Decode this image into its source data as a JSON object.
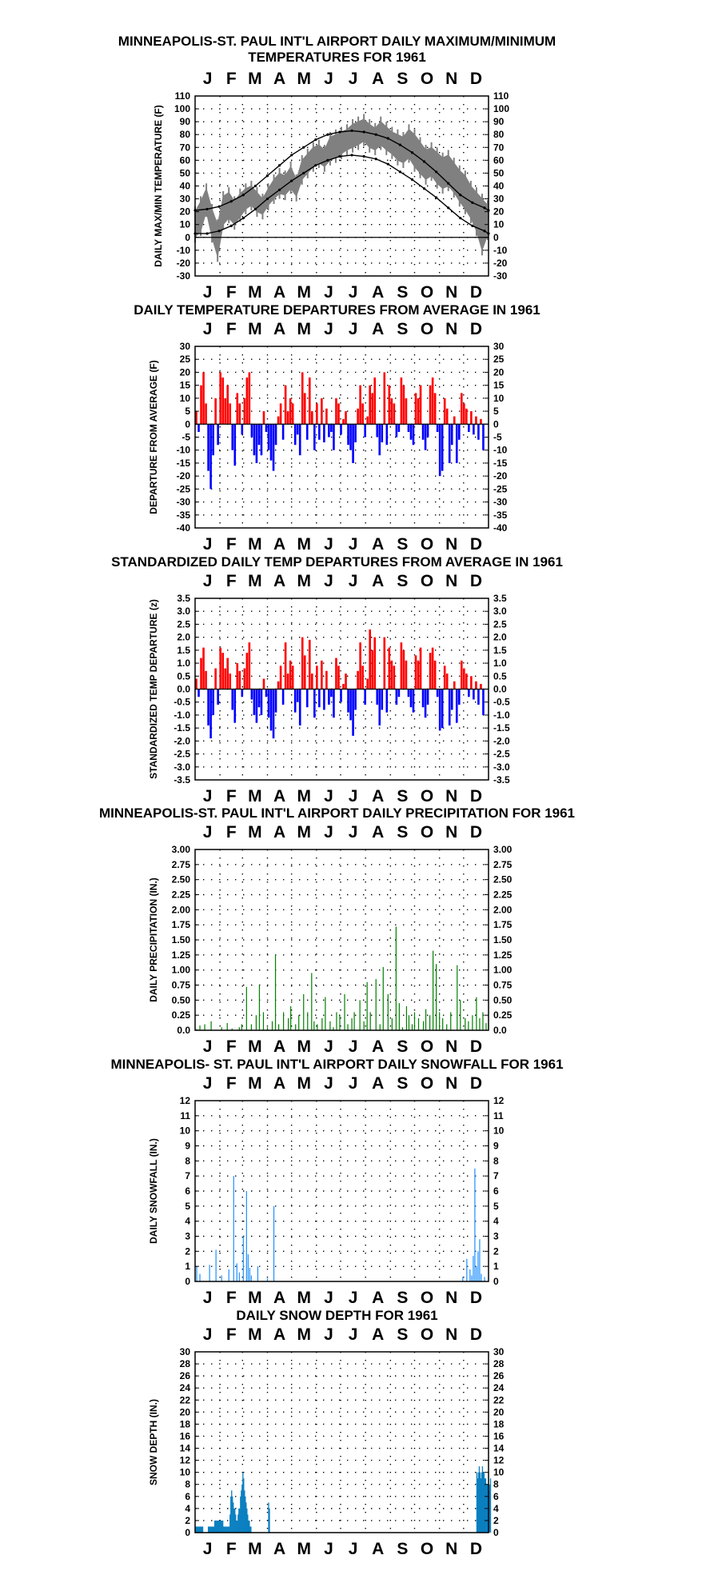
{
  "months": [
    "J",
    "F",
    "M",
    "A",
    "M",
    "J",
    "J",
    "A",
    "S",
    "O",
    "N",
    "D"
  ],
  "colors": {
    "background": "#ffffff",
    "axis": "#000000",
    "grid_dots": "#000000",
    "temp_range": "#808080",
    "normal_lines": "#000000",
    "positive_departure": "#ff0000",
    "negative_departure": "#0000ff",
    "precipitation": "#008000",
    "snowfall": "#1e90ff",
    "snow_depth": "#0a7fc0"
  },
  "chart_data": [
    {
      "id": "temps",
      "type": "area",
      "title": [
        "MINNEAPOLIS-ST. PAUL INT'L AIRPORT DAILY MAXIMUM/MINIMUM",
        "TEMPERATURES FOR 1961"
      ],
      "ylabel": "DAILY MAX/MIN TEMPERATURE (F)",
      "xlabel": "",
      "ylim": [
        -30,
        110
      ],
      "yticks": [
        -30,
        -20,
        -10,
        0,
        10,
        20,
        30,
        40,
        50,
        60,
        70,
        80,
        90,
        100,
        110
      ],
      "grid": true,
      "series": [
        {
          "role": "daily_max",
          "step_days": 7,
          "values": [
            20,
            28,
            38,
            22,
            10,
            32,
            35,
            28,
            34,
            38,
            40,
            35,
            30,
            38,
            45,
            50,
            48,
            55,
            45,
            60,
            65,
            70,
            72,
            68,
            78,
            80,
            82,
            84,
            88,
            90,
            92,
            88,
            85,
            90,
            86,
            82,
            80,
            78,
            84,
            80,
            74,
            68,
            70,
            66,
            62,
            64,
            58,
            52,
            48,
            40,
            35,
            30,
            25
          ]
        },
        {
          "role": "daily_min",
          "step_days": 7,
          "values": [
            0,
            5,
            20,
            0,
            -15,
            10,
            15,
            10,
            16,
            22,
            25,
            20,
            18,
            25,
            30,
            34,
            33,
            38,
            32,
            45,
            50,
            55,
            58,
            55,
            60,
            62,
            65,
            68,
            70,
            72,
            75,
            70,
            68,
            72,
            68,
            65,
            60,
            58,
            62,
            55,
            50,
            45,
            48,
            42,
            38,
            40,
            35,
            28,
            22,
            15,
            5,
            -10,
            2
          ]
        },
        {
          "role": "normal_max",
          "step_days": 15,
          "values": [
            21,
            22,
            24,
            28,
            33,
            40,
            48,
            56,
            64,
            70,
            76,
            80,
            82,
            83,
            82,
            80,
            77,
            72,
            66,
            59,
            51,
            42,
            33,
            27,
            23,
            21
          ]
        },
        {
          "role": "normal_min",
          "step_days": 15,
          "values": [
            3,
            3,
            5,
            9,
            15,
            22,
            30,
            37,
            44,
            50,
            56,
            60,
            63,
            64,
            63,
            61,
            57,
            51,
            45,
            38,
            31,
            23,
            15,
            9,
            5,
            3
          ]
        }
      ]
    },
    {
      "id": "departures",
      "type": "bar",
      "title": [
        "DAILY TEMPERATURE DEPARTURES FROM AVERAGE IN 1961"
      ],
      "ylabel": "DEPARTURE FROM AVERAGE (F)",
      "xlabel": "",
      "ylim": [
        -40,
        30
      ],
      "yticks": [
        -40,
        -35,
        -30,
        -25,
        -20,
        -15,
        -10,
        -5,
        0,
        5,
        10,
        15,
        20,
        25,
        30
      ],
      "grid": true,
      "step_days": 3,
      "values": [
        5,
        -3,
        15,
        20,
        8,
        -18,
        -25,
        -12,
        10,
        -8,
        20,
        18,
        10,
        15,
        8,
        -10,
        -16,
        12,
        8,
        -4,
        10,
        18,
        20,
        -5,
        -12,
        -15,
        -8,
        -12,
        5,
        -3,
        -10,
        -14,
        -18,
        -8,
        3,
        8,
        -6,
        15,
        5,
        10,
        8,
        -8,
        -4,
        -12,
        20,
        12,
        -6,
        18,
        5,
        -10,
        8,
        -6,
        10,
        -7,
        6,
        -5,
        -3,
        -10,
        10,
        8,
        -4,
        2,
        5,
        -8,
        -10,
        -15,
        -7,
        6,
        15,
        8,
        -5,
        3,
        15,
        12,
        18,
        -5,
        -12,
        -7,
        20,
        -8,
        15,
        10,
        8,
        -5,
        -3,
        18,
        15,
        10,
        -3,
        -6,
        -8,
        12,
        10,
        15,
        -6,
        -10,
        -5,
        15,
        18,
        12,
        -3,
        -20,
        -18,
        10,
        6,
        -15,
        -8,
        3,
        -15,
        -6,
        12,
        8,
        6,
        -3,
        5,
        -4,
        3,
        -6,
        2,
        -10
      ]
    },
    {
      "id": "standardized",
      "type": "bar",
      "title": [
        "STANDARDIZED DAILY TEMP DEPARTURES FROM AVERAGE IN 1961"
      ],
      "ylabel": "STANDARDIZED TEMP DEPARTURE (z)",
      "xlabel": "",
      "ylim": [
        -3.5,
        3.5
      ],
      "yticks": [
        -3.5,
        -3.0,
        -2.5,
        -2.0,
        -1.5,
        -1.0,
        -0.5,
        0.0,
        0.5,
        1.0,
        1.5,
        2.0,
        2.5,
        3.0,
        3.5
      ],
      "grid": true,
      "step_days": 3,
      "values": [
        0.4,
        -0.3,
        1.2,
        1.6,
        0.7,
        -1.4,
        -1.9,
        -1.0,
        0.8,
        -0.6,
        1.6,
        1.4,
        0.8,
        1.2,
        0.6,
        -0.8,
        -1.3,
        1.0,
        0.7,
        -0.3,
        0.8,
        1.4,
        1.8,
        -0.4,
        -1.0,
        -1.3,
        -0.7,
        -1.0,
        0.4,
        -0.3,
        -1.1,
        -1.6,
        -1.9,
        -0.9,
        0.3,
        0.9,
        -0.6,
        1.8,
        0.6,
        1.1,
        0.9,
        -0.9,
        -0.5,
        -1.4,
        2.0,
        1.3,
        -0.7,
        1.9,
        0.6,
        -1.1,
        0.9,
        -0.7,
        1.1,
        -0.8,
        0.7,
        -0.6,
        -0.3,
        -1.1,
        1.2,
        0.9,
        -0.5,
        0.2,
        0.6,
        -0.9,
        -1.2,
        -1.8,
        -0.8,
        0.7,
        1.8,
        0.9,
        -0.6,
        0.4,
        2.3,
        1.5,
        2.0,
        -0.6,
        -1.4,
        -0.8,
        2.0,
        -0.9,
        1.6,
        1.1,
        0.9,
        -0.6,
        -0.3,
        1.8,
        1.5,
        1.1,
        -0.3,
        -0.7,
        -0.9,
        1.3,
        1.1,
        1.6,
        -0.7,
        -1.1,
        -0.6,
        1.4,
        1.6,
        1.1,
        -0.3,
        -1.6,
        -1.5,
        0.9,
        0.6,
        -1.4,
        -0.8,
        0.3,
        -1.3,
        -0.6,
        1.1,
        0.8,
        0.6,
        -0.3,
        0.5,
        -0.4,
        0.3,
        -0.6,
        0.2,
        -1.0
      ]
    },
    {
      "id": "precip",
      "type": "bar",
      "title": [
        "MINNEAPOLIS-ST. PAUL INT'L AIRPORT DAILY PRECIPITATION FOR 1961"
      ],
      "ylabel": "DAILY PRECIPITATION (IN.)",
      "xlabel": "",
      "ylim": [
        0,
        3.0
      ],
      "yticks": [
        0.0,
        0.25,
        0.5,
        0.75,
        1.0,
        1.25,
        1.5,
        1.75,
        2.0,
        2.25,
        2.5,
        2.75,
        3.0
      ],
      "grid": true,
      "bars": [
        [
          2,
          0.02
        ],
        [
          6,
          0.08
        ],
        [
          12,
          0.1
        ],
        [
          20,
          0.15
        ],
        [
          33,
          0.05
        ],
        [
          40,
          0.12
        ],
        [
          46,
          0.03
        ],
        [
          55,
          0.05
        ],
        [
          58,
          0.1
        ],
        [
          64,
          0.72
        ],
        [
          70,
          0.1
        ],
        [
          76,
          0.25
        ],
        [
          80,
          0.75
        ],
        [
          85,
          0.3
        ],
        [
          90,
          0.05
        ],
        [
          96,
          0.15
        ],
        [
          100,
          1.25
        ],
        [
          104,
          0.1
        ],
        [
          110,
          0.3
        ],
        [
          116,
          0.2
        ],
        [
          119,
          0.4
        ],
        [
          125,
          0.1
        ],
        [
          129,
          0.25
        ],
        [
          135,
          0.6
        ],
        [
          140,
          0.3
        ],
        [
          145,
          0.95
        ],
        [
          148,
          0.15
        ],
        [
          152,
          0.1
        ],
        [
          158,
          0.2
        ],
        [
          162,
          0.55
        ],
        [
          168,
          0.15
        ],
        [
          172,
          0.05
        ],
        [
          176,
          0.3
        ],
        [
          180,
          0.25
        ],
        [
          186,
          0.6
        ],
        [
          190,
          0.1
        ],
        [
          195,
          0.2
        ],
        [
          198,
          0.3
        ],
        [
          205,
          0.5
        ],
        [
          210,
          0.15
        ],
        [
          214,
          0.8
        ],
        [
          218,
          0.3
        ],
        [
          225,
          0.85
        ],
        [
          230,
          0.1
        ],
        [
          234,
          1.05
        ],
        [
          240,
          0.6
        ],
        [
          245,
          0.2
        ],
        [
          250,
          1.72
        ],
        [
          254,
          0.45
        ],
        [
          258,
          0.05
        ],
        [
          263,
          0.4
        ],
        [
          266,
          0.25
        ],
        [
          270,
          0.1
        ],
        [
          273,
          0.3
        ],
        [
          278,
          0.2
        ],
        [
          284,
          0.15
        ],
        [
          287,
          0.35
        ],
        [
          292,
          0.25
        ],
        [
          296,
          1.32
        ],
        [
          300,
          1.1
        ],
        [
          304,
          0.3
        ],
        [
          308,
          0.2
        ],
        [
          313,
          0.1
        ],
        [
          318,
          0.3
        ],
        [
          326,
          1.08
        ],
        [
          330,
          0.5
        ],
        [
          336,
          0.2
        ],
        [
          340,
          0.15
        ],
        [
          345,
          0.25
        ],
        [
          350,
          0.55
        ],
        [
          354,
          0.2
        ],
        [
          358,
          0.3
        ],
        [
          362,
          0.12
        ]
      ]
    },
    {
      "id": "snowfall",
      "type": "bar",
      "title": [
        "MINNEAPOLIS- ST. PAUL INT'L AIRPORT DAILY SNOWFALL FOR 1961"
      ],
      "ylabel": "DAILY SNOWFALL (IN.)",
      "xlabel": "",
      "ylim": [
        0,
        12
      ],
      "yticks": [
        0,
        1,
        2,
        3,
        4,
        5,
        6,
        7,
        8,
        9,
        10,
        11,
        12
      ],
      "grid": true,
      "bars": [
        [
          2,
          1.0
        ],
        [
          6,
          0.5
        ],
        [
          18,
          1.1
        ],
        [
          26,
          2.1
        ],
        [
          33,
          0.4
        ],
        [
          42,
          0.8
        ],
        [
          48,
          7.0
        ],
        [
          52,
          1.2
        ],
        [
          55,
          0.6
        ],
        [
          60,
          3.0
        ],
        [
          64,
          6.0
        ],
        [
          66,
          1.8
        ],
        [
          68,
          0.9
        ],
        [
          70,
          0.4
        ],
        [
          78,
          1.0
        ],
        [
          90,
          0.2
        ],
        [
          98,
          5.0
        ],
        [
          333,
          0.3
        ],
        [
          338,
          1.5
        ],
        [
          342,
          0.8
        ],
        [
          344,
          0.4
        ],
        [
          346,
          1.7
        ],
        [
          348,
          7.5
        ],
        [
          350,
          1.0
        ],
        [
          352,
          2.0
        ],
        [
          354,
          2.8
        ],
        [
          356,
          0.5
        ],
        [
          360,
          0.3
        ]
      ]
    },
    {
      "id": "snowdepth",
      "type": "bar",
      "title": [
        "DAILY SNOW DEPTH FOR 1961"
      ],
      "ylabel": "SNOW DEPTH (IN.)",
      "xlabel": "",
      "ylim": [
        0,
        30
      ],
      "yticks": [
        0,
        2,
        4,
        6,
        8,
        10,
        12,
        14,
        16,
        18,
        20,
        22,
        24,
        26,
        28,
        30
      ],
      "grid": true,
      "step_days": 1,
      "values": [
        1,
        1,
        1,
        1,
        1,
        1,
        1,
        1,
        1,
        1,
        0,
        0,
        0,
        0,
        0,
        0,
        1,
        1,
        1,
        1,
        1,
        1,
        1,
        1,
        2,
        2,
        2,
        2,
        2,
        2,
        2,
        2,
        2,
        2,
        2,
        1,
        1,
        1,
        1,
        1,
        1,
        1,
        1,
        3,
        6,
        7,
        6,
        5,
        4,
        4,
        3,
        2,
        2,
        3,
        4,
        4,
        6,
        7,
        8,
        10,
        9,
        7,
        6,
        5,
        4,
        3,
        2,
        2,
        1,
        1,
        0,
        0,
        0,
        0,
        0,
        0,
        0,
        0,
        0,
        0,
        0,
        0,
        0,
        0,
        0,
        0,
        0,
        0,
        0,
        0,
        0,
        5,
        4,
        0,
        0,
        0,
        0,
        0,
        0,
        0,
        0,
        0,
        0,
        0,
        0,
        0,
        0,
        0,
        0,
        0,
        0,
        0,
        0,
        0,
        0,
        0,
        0,
        0,
        0,
        0,
        0,
        0,
        0,
        0,
        0,
        0,
        0,
        0,
        0,
        0,
        0,
        0,
        0,
        0,
        0,
        0,
        0,
        0,
        0,
        0,
        0,
        0,
        0,
        0,
        0,
        0,
        0,
        0,
        0,
        0,
        0,
        0,
        0,
        0,
        0,
        0,
        0,
        0,
        0,
        0,
        0,
        0,
        0,
        0,
        0,
        0,
        0,
        0,
        0,
        0,
        0,
        0,
        0,
        0,
        0,
        0,
        0,
        0,
        0,
        0,
        0,
        0,
        0,
        0,
        0,
        0,
        0,
        0,
        0,
        0,
        0,
        0,
        0,
        0,
        0,
        0,
        0,
        0,
        0,
        0,
        0,
        0,
        0,
        0,
        0,
        0,
        0,
        0,
        0,
        0,
        0,
        0,
        0,
        0,
        0,
        0,
        0,
        0,
        0,
        0,
        0,
        0,
        0,
        0,
        0,
        0,
        0,
        0,
        0,
        0,
        0,
        0,
        0,
        0,
        0,
        0,
        0,
        0,
        0,
        0,
        0,
        0,
        0,
        0,
        0,
        0,
        0,
        0,
        0,
        0,
        0,
        0,
        0,
        0,
        0,
        0,
        0,
        0,
        0,
        0,
        0,
        0,
        0,
        0,
        0,
        0,
        0,
        0,
        0,
        0,
        0,
        0,
        0,
        0,
        0,
        0,
        0,
        0,
        0,
        0,
        0,
        0,
        0,
        0,
        0,
        0,
        0,
        0,
        0,
        0,
        0,
        0,
        0,
        0,
        0,
        0,
        0,
        0,
        0,
        0,
        0,
        0,
        0,
        0,
        0,
        0,
        0,
        0,
        0,
        0,
        0,
        0,
        0,
        0,
        0,
        0,
        0,
        0,
        0,
        0,
        0,
        0,
        0,
        0,
        0,
        0,
        0,
        0,
        0,
        0,
        0,
        0,
        0,
        0,
        0,
        0,
        0,
        0,
        0,
        0,
        0,
        0,
        0,
        0,
        0,
        0,
        0,
        0,
        0,
        0,
        10,
        9,
        10,
        11,
        10,
        9,
        10,
        11,
        10,
        10,
        9,
        9,
        8,
        8,
        8,
        7,
        8,
        9
      ]
    }
  ]
}
